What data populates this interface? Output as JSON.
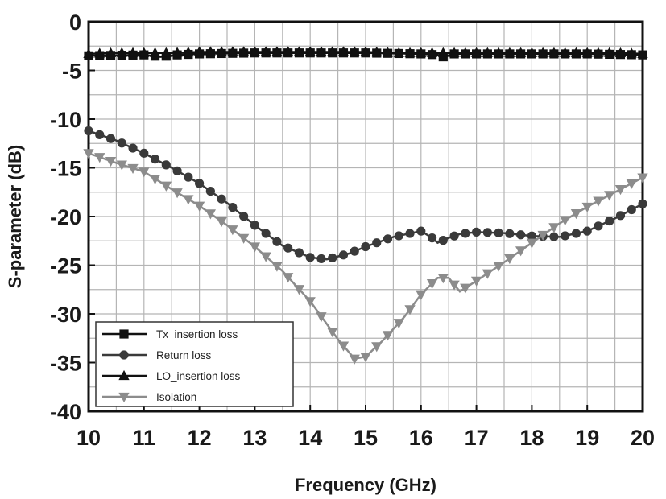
{
  "chart_data": {
    "type": "line",
    "xlabel": "Frequency (GHz)",
    "ylabel": "S-parameter (dB)",
    "xlim": [
      10,
      20
    ],
    "ylim": [
      -40,
      0
    ],
    "x_ticks": [
      "10",
      "11",
      "12",
      "13",
      "14",
      "15",
      "16",
      "17",
      "18",
      "19",
      "20"
    ],
    "y_ticks": [
      "0",
      "-5",
      "-10",
      "-15",
      "-20",
      "-25",
      "-30",
      "-35",
      "-40"
    ],
    "grid": true,
    "legend_position": "bottom-left",
    "series": [
      {
        "name": "Tx_insertion loss",
        "marker": "square",
        "color": "#111111",
        "x": [
          10,
          11,
          11.3,
          11.6,
          12,
          13,
          14,
          15,
          16,
          16.3,
          16.4,
          16.6,
          17,
          18,
          19,
          20
        ],
        "y": [
          -3.5,
          -3.4,
          -3.6,
          -3.4,
          -3.3,
          -3.2,
          -3.2,
          -3.2,
          -3.3,
          -3.4,
          -3.6,
          -3.3,
          -3.3,
          -3.3,
          -3.3,
          -3.4
        ]
      },
      {
        "name": "Return loss",
        "marker": "circle",
        "color": "#3a3a3a",
        "x": [
          10,
          10.5,
          11,
          11.5,
          12,
          12.5,
          13,
          13.5,
          14,
          14.3,
          14.7,
          15,
          15.5,
          16,
          16.2,
          16.3,
          16.5,
          16.7,
          17,
          17.5,
          18,
          18.5,
          19,
          19.5,
          20
        ],
        "y": [
          -11.2,
          -12.2,
          -13.5,
          -15,
          -16.6,
          -18.6,
          -20.9,
          -23,
          -24.2,
          -24.4,
          -23.8,
          -23.1,
          -22.1,
          -21.5,
          -22.2,
          -22.7,
          -22.2,
          -21.8,
          -21.6,
          -21.7,
          -22,
          -22.1,
          -21.5,
          -20.2,
          -18.7
        ]
      },
      {
        "name": "LO_insertion loss",
        "marker": "triangle-up",
        "color": "#111111",
        "x": [
          10,
          10.5,
          11,
          11.5,
          12,
          12.5,
          13,
          13.5,
          14,
          14.5,
          15,
          15.5,
          16,
          16.5,
          17,
          17.5,
          18,
          18.5,
          19,
          19.5,
          20
        ],
        "y": [
          -3.3,
          -3.2,
          -3.2,
          -3.2,
          -3.1,
          -3.1,
          -3.1,
          -3.1,
          -3.1,
          -3.1,
          -3.1,
          -3.2,
          -3.2,
          -3.2,
          -3.2,
          -3.2,
          -3.2,
          -3.2,
          -3.2,
          -3.2,
          -3.3
        ]
      },
      {
        "name": "Isolation",
        "marker": "triangle-down",
        "color": "#8c8c8c",
        "x": [
          10,
          10.5,
          11,
          11.5,
          12,
          12.5,
          13,
          13.5,
          14,
          14.5,
          14.8,
          15,
          15.3,
          15.7,
          16,
          16.3,
          16.5,
          16.7,
          17,
          17.5,
          18,
          18.5,
          19,
          19.5,
          20
        ],
        "y": [
          -13.5,
          -14.5,
          -15.4,
          -17.2,
          -18.9,
          -20.9,
          -23.1,
          -25.6,
          -28.7,
          -32.6,
          -34.6,
          -34.4,
          -32.8,
          -30.3,
          -28,
          -26.3,
          -26.3,
          -27.7,
          -26.6,
          -24.7,
          -22.7,
          -20.7,
          -19,
          -17.5,
          -16
        ]
      }
    ]
  }
}
